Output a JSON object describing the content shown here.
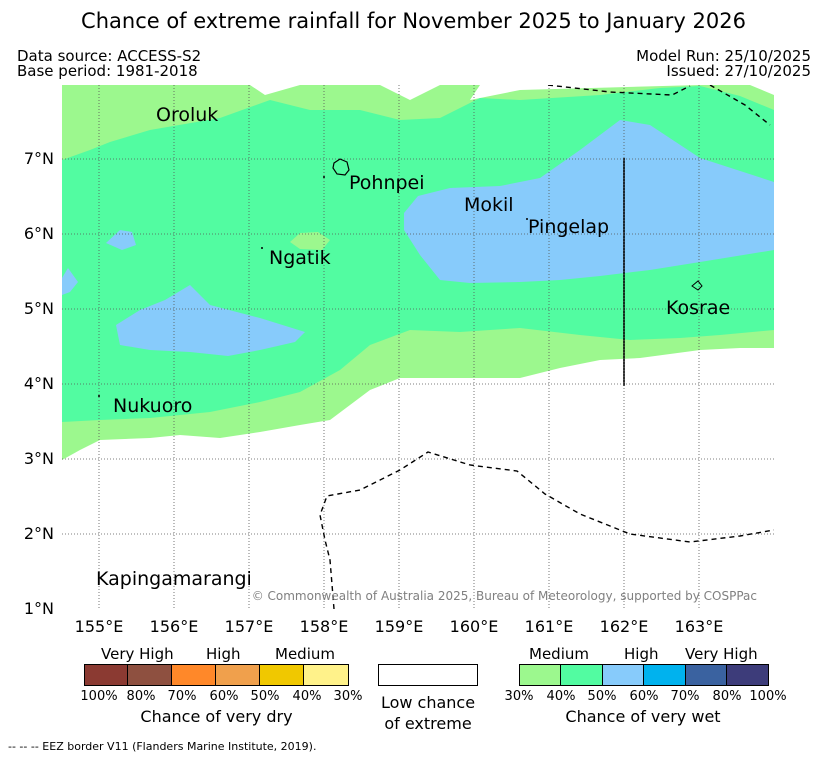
{
  "title": "Chance of extreme rainfall for November 2025 to January 2026",
  "data_source": "Data source: ACCESS-S2",
  "base_period": "Base period: 1981-2018",
  "model_run": "Model Run: 25/10/2025",
  "issued": "Issued: 27/10/2025",
  "lat_labels": [
    "7°N",
    "6°N",
    "5°N",
    "4°N",
    "3°N",
    "2°N",
    "1°N"
  ],
  "lon_labels": [
    "155°E",
    "156°E",
    "157°E",
    "158°E",
    "159°E",
    "160°E",
    "161°E",
    "162°E",
    "163°E"
  ],
  "places": {
    "oroluk": "Oroluk",
    "pohnpei": "Pohnpei",
    "mokil": "Mokil",
    "pingelap": "Pingelap",
    "ngatik": "Ngatik",
    "kosrae": "Kosrae",
    "nukuoro": "Nukuoro",
    "kapingamarangi": "Kapingamarangi"
  },
  "copyright": "© Commonwealth of Australia 2025, Bureau of Meteorology, supported by COSPPac",
  "colors": {
    "dry_very_high_1": "#8b3a32",
    "dry_very_high_2": "#8e5040",
    "dry_high_1": "#ff8829",
    "dry_high_2": "#f0a04c",
    "dry_medium_1": "#f0c800",
    "dry_medium_2": "#fff28a",
    "wet_medium_1": "#9cf88e",
    "wet_medium_2": "#52fca1",
    "wet_high_1": "#87cbfb",
    "wet_high_2": "#00b2ee",
    "wet_very_high_1": "#3a62a0",
    "wet_very_high_2": "#3d3c7a"
  },
  "dry_legend": {
    "levels": [
      "Very High",
      "High",
      "Medium"
    ],
    "ticks": [
      "100%",
      "80%",
      "70%",
      "60%",
      "50%",
      "40%",
      "30%"
    ],
    "label": "Chance of very dry"
  },
  "low_legend": {
    "line1": "Low chance",
    "line2": "of extreme"
  },
  "wet_legend": {
    "levels": [
      "Medium",
      "High",
      "Very High"
    ],
    "ticks": [
      "30%",
      "40%",
      "50%",
      "60%",
      "70%",
      "80%",
      "100%"
    ],
    "label": "Chance of very wet"
  },
  "footnote": "--  --  -- EEZ border V11 (Flanders Marine Institute, 2019)."
}
